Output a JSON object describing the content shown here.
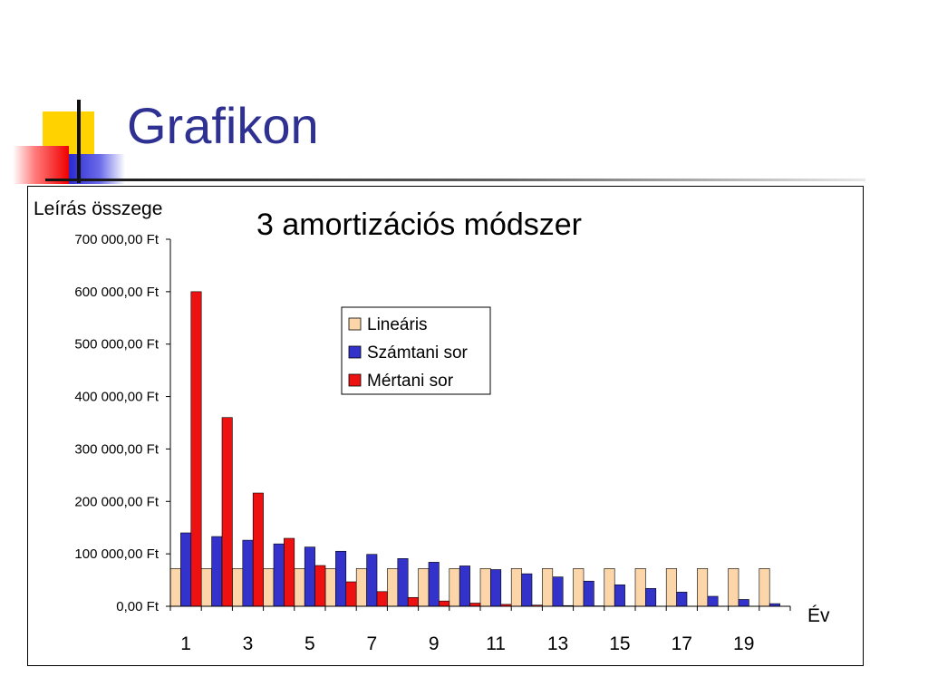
{
  "slide": {
    "title": "Grafikon"
  },
  "chart_data": {
    "type": "bar",
    "title": "3 amortizációs módszer",
    "ylabel": "Leírás összege",
    "xlabel": "Év",
    "ylim": [
      0,
      700000
    ],
    "y_ticks": [
      0,
      100000,
      200000,
      300000,
      400000,
      500000,
      600000,
      700000
    ],
    "y_tick_labels": [
      "0,00 Ft",
      "100 000,00 Ft",
      "200 000,00 Ft",
      "300 000,00 Ft",
      "400 000,00 Ft",
      "500 000,00 Ft",
      "600 000,00 Ft",
      "700 000,00 Ft"
    ],
    "categories": [
      1,
      2,
      3,
      4,
      5,
      6,
      7,
      8,
      9,
      10,
      11,
      12,
      13,
      14,
      15,
      16,
      17,
      18,
      19,
      20
    ],
    "x_tick_labels": [
      "1",
      "3",
      "5",
      "7",
      "9",
      "11",
      "13",
      "15",
      "17",
      "19"
    ],
    "legend_position": "upper-center",
    "grid": false,
    "series": [
      {
        "name": "Lineáris",
        "color": "#fcd5a8",
        "values": [
          72000,
          72000,
          72000,
          72000,
          72000,
          72000,
          72000,
          72000,
          72000,
          72000,
          72000,
          72000,
          72000,
          72000,
          72000,
          72000,
          72000,
          72000,
          72000,
          72000
        ]
      },
      {
        "name": "Számtani sor",
        "color": "#3333cc",
        "values": [
          140000,
          133000,
          126000,
          119000,
          113000,
          105000,
          99000,
          91000,
          84000,
          77000,
          70000,
          62000,
          56000,
          48000,
          41000,
          34000,
          27000,
          19000,
          13000,
          5000
        ]
      },
      {
        "name": "Mértani sor",
        "color": "#ee1111",
        "values": [
          600000,
          360000,
          216000,
          129600,
          77760,
          46656,
          27994,
          16796,
          10078,
          6047,
          3628,
          2177,
          1306,
          784,
          470,
          282,
          169,
          102,
          61,
          37
        ]
      }
    ]
  }
}
